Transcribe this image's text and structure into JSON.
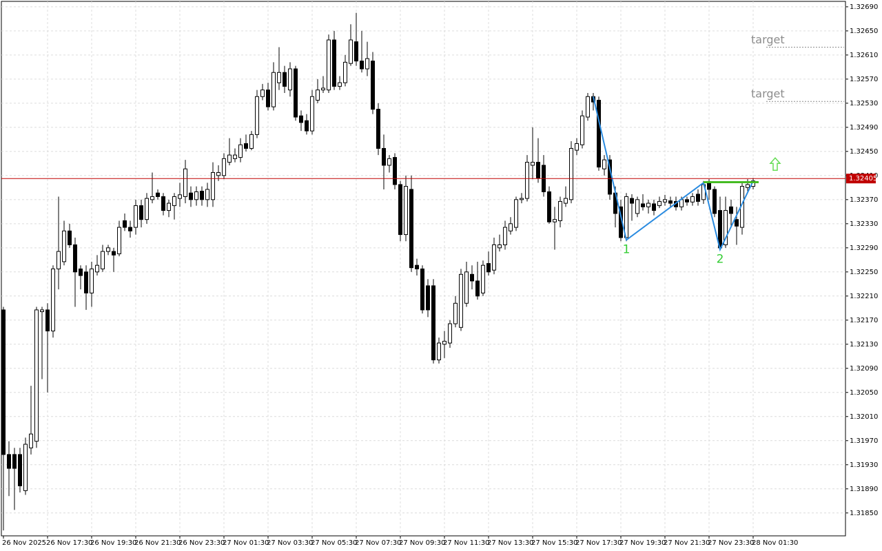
{
  "chart_data": {
    "type": "candlestick",
    "up_color": "#ffffff",
    "down_color": "#000000",
    "line_color": "#000000",
    "grid": true,
    "ylim": [
      1.31812,
      1.32699
    ],
    "yticks": [
      {
        "value": 1.3269,
        "label": "1.32690"
      },
      {
        "value": 1.3265,
        "label": "1.32650"
      },
      {
        "value": 1.3261,
        "label": "1.32610"
      },
      {
        "value": 1.3257,
        "label": "1.32570"
      },
      {
        "value": 1.3253,
        "label": "1.32530"
      },
      {
        "value": 1.3249,
        "label": "1.32490"
      },
      {
        "value": 1.3245,
        "label": "1.32450"
      },
      {
        "value": 1.3241,
        "label": "1.32410"
      },
      {
        "value": 1.3237,
        "label": "1.32370"
      },
      {
        "value": 1.3233,
        "label": "1.32330"
      },
      {
        "value": 1.3229,
        "label": "1.32290"
      },
      {
        "value": 1.3225,
        "label": "1.32250"
      },
      {
        "value": 1.3221,
        "label": "1.32210"
      },
      {
        "value": 1.3217,
        "label": "1.32170"
      },
      {
        "value": 1.3213,
        "label": "1.32130"
      },
      {
        "value": 1.3209,
        "label": "1.32090"
      },
      {
        "value": 1.3205,
        "label": "1.32050"
      },
      {
        "value": 1.3201,
        "label": "1.32010"
      },
      {
        "value": 1.3197,
        "label": "1.31970"
      },
      {
        "value": 1.3193,
        "label": "1.31930"
      },
      {
        "value": 1.3189,
        "label": "1.31890"
      },
      {
        "value": 1.3185,
        "label": "1.31850"
      }
    ],
    "xticks": [
      {
        "value": 0,
        "label": "26 Nov 2025"
      },
      {
        "value": 8,
        "label": "26 Nov 17:30"
      },
      {
        "value": 16,
        "label": "26 Nov 19:30"
      },
      {
        "value": 24,
        "label": "26 Nov 21:30"
      },
      {
        "value": 32,
        "label": "26 Nov 23:30"
      },
      {
        "value": 40,
        "label": "27 Nov 01:30"
      },
      {
        "value": 48,
        "label": "27 Nov 03:30"
      },
      {
        "value": 56,
        "label": "27 Nov 05:30"
      },
      {
        "value": 64,
        "label": "27 Nov 07:30"
      },
      {
        "value": 72,
        "label": "27 Nov 09:30"
      },
      {
        "value": 80,
        "label": "27 Nov 11:30"
      },
      {
        "value": 88,
        "label": "27 Nov 13:30"
      },
      {
        "value": 96,
        "label": "27 Nov 15:30"
      },
      {
        "value": 104,
        "label": "27 Nov 17:30"
      },
      {
        "value": 112,
        "label": "27 Nov 19:30"
      },
      {
        "value": 120,
        "label": "27 Nov 21:30"
      },
      {
        "value": 128,
        "label": "27 Nov 23:30"
      },
      {
        "value": 136,
        "label": "28 Nov 01:30"
      }
    ],
    "open": [
      1.32187,
      1.31947,
      1.31947,
      1.31947,
      1.31887,
      1.31958,
      1.31969,
      1.32184,
      1.32187,
      1.32152,
      1.32255,
      1.32267,
      1.32318,
      1.32295,
      1.32255,
      1.3225,
      1.32215,
      1.3225,
      1.32255,
      1.32284,
      1.32284,
      1.3228,
      1.32335,
      1.32324,
      1.32324,
      1.3236,
      1.32337,
      1.3237,
      1.32381,
      1.32375,
      1.32352,
      1.3236,
      1.32372,
      1.32375,
      1.32381,
      1.3237,
      1.32384,
      1.3237,
      1.3237,
      1.3241,
      1.3241,
      1.32432,
      1.32438,
      1.3244,
      1.32463,
      1.32455,
      1.32478,
      1.32541,
      1.32552,
      1.32524,
      1.32564,
      1.32581,
      1.32552,
      1.32587,
      1.32509,
      1.32501,
      1.32484,
      1.32535,
      1.32552,
      1.32552,
      1.32635,
      1.32558,
      1.32564,
      1.32596,
      1.32632,
      1.326,
      1.32587,
      1.326,
      1.3252,
      1.32455,
      1.32427,
      1.3244,
      1.32395,
      1.32312,
      1.32387,
      1.32261,
      1.32255,
      1.32227,
      1.32227,
      1.32104,
      1.3213,
      1.32132,
      1.32164,
      1.32158,
      1.32198,
      1.32246,
      1.32235,
      1.32215,
      1.32264,
      1.32253,
      1.3229,
      1.32295,
      1.32318,
      1.32324,
      1.3237,
      1.32372,
      1.32427,
      1.32432,
      1.32427,
      1.32383,
      1.32333,
      1.32335,
      1.32364,
      1.3237,
      1.32452,
      1.32461,
      1.32507,
      1.32541,
      1.32535,
      1.32421,
      1.32436,
      1.32381,
      1.32358,
      1.32307,
      1.32372,
      1.32347,
      1.32363,
      1.32358,
      1.32363,
      1.3236,
      1.32366,
      1.32368,
      1.32367,
      1.32358,
      1.3237,
      1.32366,
      1.32379,
      1.3237,
      1.32398,
      1.32387,
      1.32352,
      1.32295,
      1.32358,
      1.32337,
      1.32324,
      1.3239,
      1.32392
    ],
    "high": [
      1.32192,
      1.31969,
      1.31958,
      1.31958,
      1.31975,
      1.32061,
      1.32192,
      1.32192,
      1.32198,
      1.32261,
      1.32375,
      1.32335,
      1.3233,
      1.32307,
      1.32261,
      1.32261,
      1.32267,
      1.32278,
      1.32295,
      1.32295,
      1.3229,
      1.32335,
      1.32347,
      1.32335,
      1.3237,
      1.3237,
      1.32381,
      1.32415,
      1.32387,
      1.32381,
      1.3237,
      1.32381,
      1.32398,
      1.32436,
      1.32392,
      1.32392,
      1.32392,
      1.32398,
      1.32432,
      1.32427,
      1.32447,
      1.32472,
      1.32455,
      1.32472,
      1.32478,
      1.32484,
      1.32552,
      1.32562,
      1.32564,
      1.32598,
      1.32623,
      1.32592,
      1.32598,
      1.32592,
      1.32518,
      1.32512,
      1.32552,
      1.3257,
      1.32575,
      1.32644,
      1.3265,
      1.32575,
      1.3261,
      1.32661,
      1.3268,
      1.3265,
      1.32632,
      1.32615,
      1.3253,
      1.32478,
      1.32444,
      1.32447,
      1.32401,
      1.3241,
      1.3241,
      1.32272,
      1.32261,
      1.32238,
      1.32238,
      1.32141,
      1.32152,
      1.3217,
      1.3221,
      1.32255,
      1.32267,
      1.32261,
      1.32267,
      1.32269,
      1.32284,
      1.32307,
      1.32312,
      1.32335,
      1.32341,
      1.32375,
      1.32381,
      1.32444,
      1.3249,
      1.32472,
      1.32444,
      1.32392,
      1.32358,
      1.32375,
      1.32392,
      1.32467,
      1.32472,
      1.32518,
      1.32547,
      1.32547,
      1.32541,
      1.32444,
      1.32444,
      1.32392,
      1.3237,
      1.32381,
      1.32379,
      1.32375,
      1.32379,
      1.3237,
      1.3237,
      1.32375,
      1.32378,
      1.32375,
      1.32375,
      1.32375,
      1.32375,
      1.32381,
      1.32387,
      1.32401,
      1.32404,
      1.32392,
      1.32375,
      1.32375,
      1.3237,
      1.32358,
      1.32398,
      1.32404,
      1.32406
    ],
    "low": [
      1.31821,
      1.31878,
      1.31855,
      1.31884,
      1.3188,
      1.31947,
      1.31958,
      1.32072,
      1.3205,
      1.32141,
      1.32221,
      1.32261,
      1.3229,
      1.32192,
      1.32221,
      1.32187,
      1.32192,
      1.32244,
      1.3225,
      1.32278,
      1.3225,
      1.32276,
      1.32318,
      1.32307,
      1.32312,
      1.32324,
      1.3233,
      1.32364,
      1.3237,
      1.32344,
      1.32341,
      1.32337,
      1.32358,
      1.32364,
      1.32358,
      1.3236,
      1.3236,
      1.32358,
      1.32358,
      1.32401,
      1.32404,
      1.32427,
      1.32432,
      1.32432,
      1.3245,
      1.32452,
      1.32472,
      1.32535,
      1.32518,
      1.32518,
      1.32552,
      1.32547,
      1.32541,
      1.32501,
      1.32484,
      1.32478,
      1.32478,
      1.3253,
      1.32547,
      1.32547,
      1.32552,
      1.32552,
      1.32558,
      1.32592,
      1.32592,
      1.32581,
      1.32575,
      1.32512,
      1.32444,
      1.32387,
      1.32415,
      1.32387,
      1.32301,
      1.32301,
      1.3225,
      1.32244,
      1.32181,
      1.32175,
      1.32098,
      1.32098,
      1.32107,
      1.32124,
      1.32158,
      1.32152,
      1.32192,
      1.32221,
      1.32204,
      1.3221,
      1.32244,
      1.32246,
      1.32284,
      1.32287,
      1.32312,
      1.32318,
      1.32364,
      1.32367,
      1.32404,
      1.32398,
      1.32375,
      1.3233,
      1.32287,
      1.32324,
      1.32358,
      1.32364,
      1.32444,
      1.32455,
      1.32501,
      1.32518,
      1.32418,
      1.3241,
      1.3237,
      1.32324,
      1.32301,
      1.32301,
      1.32335,
      1.32341,
      1.32352,
      1.32347,
      1.32344,
      1.32356,
      1.3236,
      1.32358,
      1.32352,
      1.32352,
      1.3236,
      1.3236,
      1.3236,
      1.32363,
      1.3237,
      1.32341,
      1.32287,
      1.3229,
      1.32324,
      1.32295,
      1.32312,
      1.32383,
      1.32387
    ],
    "close": [
      1.31947,
      1.31924,
      1.31924,
      1.31895,
      1.31964,
      1.31981,
      1.32187,
      1.32187,
      1.32152,
      1.32255,
      1.32284,
      1.32318,
      1.32295,
      1.3225,
      1.32244,
      1.32215,
      1.32255,
      1.32261,
      1.32284,
      1.3229,
      1.32278,
      1.32324,
      1.32324,
      1.32318,
      1.3236,
      1.32337,
      1.32372,
      1.32375,
      1.32375,
      1.32352,
      1.32364,
      1.32375,
      1.32378,
      1.32421,
      1.3237,
      1.32383,
      1.3237,
      1.32387,
      1.32415,
      1.32415,
      1.32438,
      1.32444,
      1.32444,
      1.32461,
      1.32455,
      1.32478,
      1.32541,
      1.32552,
      1.32524,
      1.32581,
      1.32581,
      1.32558,
      1.32587,
      1.32507,
      1.32498,
      1.32484,
      1.32541,
      1.32552,
      1.32555,
      1.32635,
      1.32558,
      1.32564,
      1.32598,
      1.32635,
      1.326,
      1.32587,
      1.32604,
      1.3252,
      1.32455,
      1.32427,
      1.32438,
      1.32395,
      1.32312,
      1.32392,
      1.32257,
      1.32255,
      1.32187,
      1.32187,
      1.32104,
      1.32132,
      1.32135,
      1.32164,
      1.32198,
      1.32246,
      1.3225,
      1.32235,
      1.3221,
      1.32261,
      1.3225,
      1.32295,
      1.32295,
      1.32324,
      1.3233,
      1.3237,
      1.32372,
      1.32432,
      1.32432,
      1.32406,
      1.32383,
      1.32333,
      1.32337,
      1.32367,
      1.32372,
      1.32455,
      1.32463,
      1.32509,
      1.32541,
      1.32532,
      1.32424,
      1.32436,
      1.32379,
      1.32347,
      1.32307,
      1.32375,
      1.32364,
      1.3237,
      1.32358,
      1.32364,
      1.32352,
      1.32367,
      1.3237,
      1.32364,
      1.32358,
      1.3237,
      1.32366,
      1.32375,
      1.32367,
      1.32395,
      1.32387,
      1.32347,
      1.3229,
      1.32352,
      1.32347,
      1.32326,
      1.32392,
      1.32395,
      1.32401
    ],
    "price_line": {
      "value": 1.32405,
      "label": "1.32405",
      "color": "#c00000"
    },
    "targets": [
      {
        "text": "target",
        "value": 1.32623
      },
      {
        "text": "target",
        "value": 1.32533
      }
    ],
    "target_color": "#8c8c8c",
    "pattern": {
      "color": "#2a8be0",
      "label_color": "#33cc33",
      "points": [
        {
          "index": 107,
          "value": 1.32541
        },
        {
          "index": 113,
          "value": 1.32303,
          "label": "1"
        },
        {
          "index": 127,
          "value": 1.32398
        },
        {
          "index": 130,
          "value": 1.32287,
          "label": "2"
        },
        {
          "index": 136,
          "value": 1.32401
        }
      ]
    },
    "neckline": {
      "value": 1.32399,
      "from": 127,
      "to": 137,
      "color": "#44bb22"
    },
    "signal": {
      "index": 140,
      "value": 1.32429,
      "color": "#66dd55"
    }
  }
}
